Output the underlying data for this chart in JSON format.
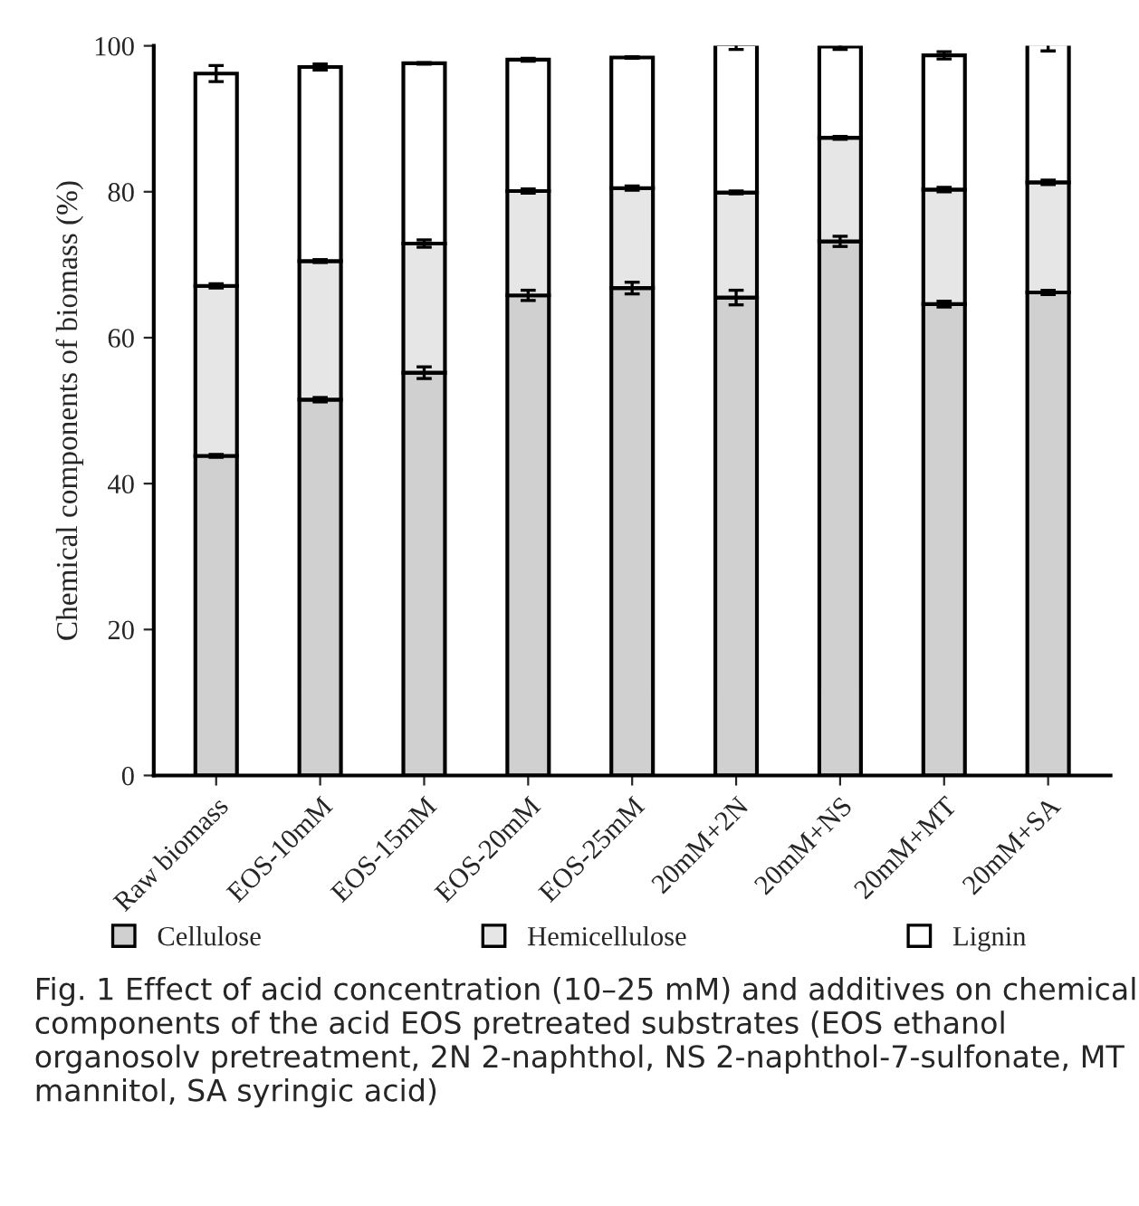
{
  "chart_data": {
    "type": "bar",
    "stacked": true,
    "ylabel": "Chemical components of biomass (%)",
    "categories": [
      "Raw biomass",
      "EOS-10mM",
      "EOS-15mM",
      "EOS-20mM",
      "EOS-25mM",
      "20mM+2N",
      "20mM+NS",
      "20mM+MT",
      "20mM+SA"
    ],
    "series": [
      {
        "name": "Cellulose",
        "color": "#d0d0d0",
        "values": [
          43.8,
          51.5,
          55.2,
          65.8,
          66.8,
          65.5,
          73.2,
          64.6,
          66.2
        ],
        "errors": [
          0.2,
          0.3,
          0.8,
          0.7,
          0.8,
          1.0,
          0.7,
          0.4,
          0.3
        ]
      },
      {
        "name": "Hemicellulose",
        "color": "#e6e6e6",
        "values": [
          23.3,
          19.0,
          17.7,
          14.3,
          13.7,
          14.4,
          14.2,
          15.7,
          15.1
        ],
        "errors": [
          0.3,
          0.2,
          0.5,
          0.3,
          0.3,
          0.2,
          0.2,
          0.3,
          0.3
        ]
      },
      {
        "name": "Lignin",
        "color": "#ffffff",
        "values": [
          29.1,
          26.6,
          24.7,
          18.0,
          17.9,
          20.3,
          12.5,
          18.4,
          19.0
        ],
        "errors": [
          1.1,
          0.4,
          0.1,
          0.2,
          0.1,
          0.7,
          0.4,
          0.5,
          1.0
        ]
      }
    ],
    "ylim": [
      0,
      100
    ],
    "yticks": [
      0,
      20,
      40,
      60,
      80,
      100
    ],
    "legend": "bottom",
    "grid": false,
    "annotations": [
      "Fig. 1 Effect of acid concentration (10–25 mM) and additives on chemical components of the acid EOS pretreated substrates (EOS ethanol organosolv pretreatment, 2N 2-naphthol, NS 2-naphthol-7-sulfonate, MT mannitol, SA syringic acid)"
    ]
  }
}
